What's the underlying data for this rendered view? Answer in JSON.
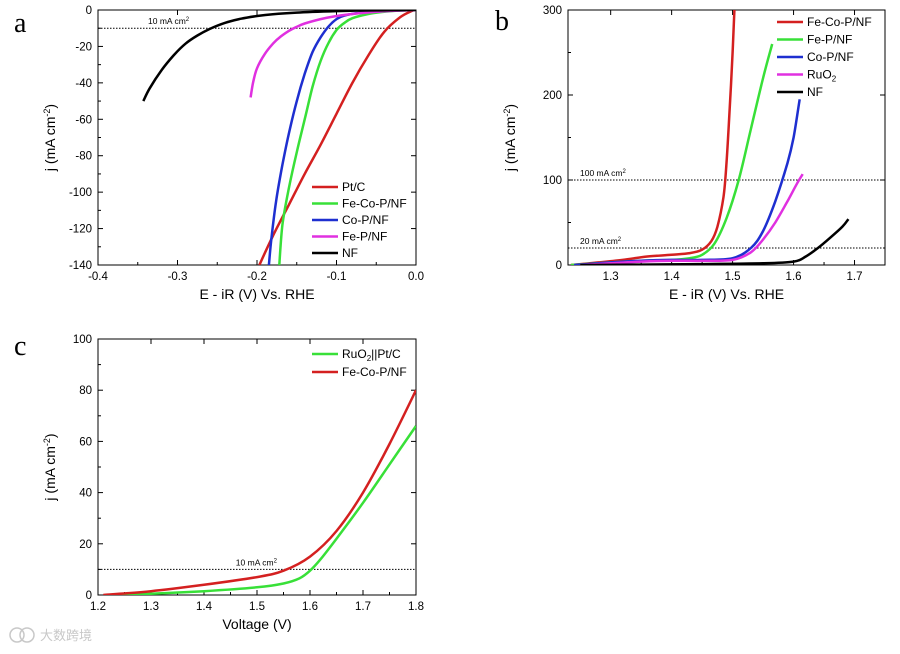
{
  "chart_data": [
    {
      "panel": "a",
      "type": "line",
      "xlabel": "E - iR (V) Vs. RHE",
      "ylabel": "j (mA cm",
      "ylabel_sup": "-2",
      "ylabel_close": ")",
      "xlim": [
        -0.4,
        0.0
      ],
      "ylim": [
        -140,
        0
      ],
      "xticks": [
        -0.4,
        -0.3,
        -0.2,
        -0.1,
        0.0
      ],
      "xtick_labels": [
        "-0.4",
        "-0.3",
        "-0.2",
        "-0.1",
        "0.0"
      ],
      "yticks": [
        0,
        -20,
        -40,
        -60,
        -80,
        -100,
        -120,
        -140
      ],
      "ytick_labels": [
        "0",
        "-20",
        "-40",
        "-60",
        "-80",
        "-100",
        "-120",
        "-140"
      ],
      "reference_lines": [
        {
          "y": -10,
          "label": "10 mA cm",
          "label_sup": "2"
        }
      ],
      "legend_position": "bottom-right",
      "series": [
        {
          "name": "Pt/C",
          "color": "#d42020",
          "x": [
            -0.197,
            -0.18,
            -0.16,
            -0.14,
            -0.12,
            -0.1,
            -0.08,
            -0.06,
            -0.04,
            -0.02,
            -0.005,
            0.0
          ],
          "y": [
            -140,
            -124,
            -107,
            -90,
            -74,
            -57,
            -40,
            -25,
            -12,
            -4,
            -0.5,
            0
          ]
        },
        {
          "name": "Fe-Co-P/NF",
          "color": "#38e038",
          "x": [
            -0.172,
            -0.168,
            -0.16,
            -0.15,
            -0.14,
            -0.13,
            -0.12,
            -0.11,
            -0.1,
            -0.09,
            -0.08,
            -0.06,
            -0.04,
            -0.02,
            0.0
          ],
          "y": [
            -140,
            -118,
            -98,
            -78,
            -60,
            -42,
            -28,
            -18,
            -11,
            -7,
            -4.5,
            -2.2,
            -1,
            -0.3,
            0
          ]
        },
        {
          "name": "Co-P/NF",
          "color": "#1e2fd0",
          "x": [
            -0.185,
            -0.182,
            -0.176,
            -0.168,
            -0.16,
            -0.15,
            -0.14,
            -0.13,
            -0.12,
            -0.11,
            -0.1,
            -0.09,
            -0.07,
            -0.04,
            -0.02,
            0.0
          ],
          "y": [
            -140,
            -126,
            -105,
            -85,
            -68,
            -50,
            -35,
            -23,
            -15,
            -9,
            -5,
            -3,
            -1.5,
            -0.6,
            -0.2,
            0
          ]
        },
        {
          "name": "Fe-P/NF",
          "color": "#e030e0",
          "x": [
            -0.208,
            -0.205,
            -0.2,
            -0.19,
            -0.18,
            -0.17,
            -0.16,
            -0.15,
            -0.14,
            -0.12,
            -0.1,
            -0.08,
            -0.05,
            -0.02,
            0.0
          ],
          "y": [
            -48,
            -40,
            -32,
            -24,
            -18.5,
            -14.5,
            -11.5,
            -9.2,
            -7.4,
            -5,
            -3.3,
            -2.2,
            -1,
            -0.3,
            0
          ]
        },
        {
          "name": "NF",
          "color": "#000000",
          "x": [
            -0.343,
            -0.335,
            -0.32,
            -0.305,
            -0.29,
            -0.275,
            -0.26,
            -0.24,
            -0.22,
            -0.2,
            -0.18,
            -0.15,
            -0.1,
            -0.05,
            0.0
          ],
          "y": [
            -50,
            -43,
            -33,
            -25,
            -18.5,
            -14,
            -10.5,
            -7,
            -4.8,
            -3.3,
            -2.3,
            -1.4,
            -0.6,
            -0.2,
            0
          ]
        }
      ]
    },
    {
      "panel": "b",
      "type": "line",
      "xlabel": "E - iR (V) Vs. RHE",
      "ylabel": "j (mA cm",
      "ylabel_sup": "-2",
      "ylabel_close": ")",
      "xlim": [
        1.23,
        1.75
      ],
      "ylim": [
        0,
        300
      ],
      "xticks": [
        1.3,
        1.4,
        1.5,
        1.6,
        1.7
      ],
      "xtick_labels": [
        "1.3",
        "1.4",
        "1.5",
        "1.6",
        "1.7"
      ],
      "yticks": [
        0,
        100,
        200,
        300
      ],
      "ytick_labels": [
        "0",
        "100",
        "200",
        "300"
      ],
      "reference_lines": [
        {
          "y": 100,
          "label": "100 mA cm",
          "label_sup": "2"
        },
        {
          "y": 20,
          "label": "20 mA cm",
          "label_sup": "2"
        }
      ],
      "legend_position": "top-right",
      "series": [
        {
          "name": "Fe-Co-P/NF",
          "color": "#d42020",
          "x": [
            1.235,
            1.28,
            1.32,
            1.36,
            1.4,
            1.43,
            1.45,
            1.465,
            1.475,
            1.485,
            1.49,
            1.495,
            1.5,
            1.503
          ],
          "y": [
            0,
            3,
            6,
            10,
            12,
            14,
            18,
            28,
            45,
            80,
            120,
            180,
            250,
            300
          ]
        },
        {
          "name": "Fe-P/NF",
          "color": "#38e038",
          "x": [
            1.235,
            1.3,
            1.35,
            1.4,
            1.43,
            1.45,
            1.47,
            1.49,
            1.51,
            1.53,
            1.55,
            1.565
          ],
          "y": [
            0,
            3,
            5,
            6,
            8,
            12,
            25,
            55,
            100,
            160,
            220,
            260
          ]
        },
        {
          "name": "Co-P/NF",
          "color": "#1e2fd0",
          "x": [
            1.24,
            1.3,
            1.35,
            1.4,
            1.45,
            1.5,
            1.53,
            1.55,
            1.57,
            1.59,
            1.6,
            1.61
          ],
          "y": [
            0,
            3,
            5,
            6,
            6,
            8,
            20,
            40,
            75,
            120,
            150,
            195
          ]
        },
        {
          "name": "RuO",
          "name_sub": "2",
          "color": "#e030e0",
          "x": [
            1.25,
            1.3,
            1.35,
            1.4,
            1.45,
            1.5,
            1.53,
            1.55,
            1.57,
            1.59,
            1.605,
            1.615
          ],
          "y": [
            0,
            2,
            4,
            5,
            5,
            6,
            15,
            30,
            50,
            75,
            95,
            107
          ]
        },
        {
          "name": "NF",
          "color": "#000000",
          "x": [
            1.25,
            1.35,
            1.45,
            1.55,
            1.6,
            1.62,
            1.64,
            1.66,
            1.68,
            1.69
          ],
          "y": [
            0,
            0.5,
            1,
            2,
            4,
            10,
            20,
            32,
            45,
            54
          ]
        }
      ]
    },
    {
      "panel": "c",
      "type": "line",
      "xlabel": "Voltage (V)",
      "ylabel": "j (mA cm",
      "ylabel_sup": "-2",
      "ylabel_close": ")",
      "xlim": [
        1.2,
        1.8
      ],
      "ylim": [
        0,
        100
      ],
      "xticks": [
        1.2,
        1.3,
        1.4,
        1.5,
        1.6,
        1.7,
        1.8
      ],
      "xtick_labels": [
        "1.2",
        "1.3",
        "1.4",
        "1.5",
        "1.6",
        "1.7",
        "1.8"
      ],
      "yticks": [
        0,
        20,
        40,
        60,
        80,
        100
      ],
      "ytick_labels": [
        "0",
        "20",
        "40",
        "60",
        "80",
        "100"
      ],
      "reference_lines": [
        {
          "y": 10,
          "label": "10 mA cm",
          "label_sup": "2"
        }
      ],
      "legend_position": "top-right",
      "series": [
        {
          "name": "RuO",
          "name_sub": "2",
          "name_rest": "||Pt/C",
          "color": "#38e038",
          "x": [
            1.22,
            1.3,
            1.4,
            1.5,
            1.55,
            1.58,
            1.6,
            1.62,
            1.65,
            1.7,
            1.75,
            1.8
          ],
          "y": [
            0,
            0.5,
            1.5,
            3,
            4.5,
            6.5,
            9.5,
            14,
            22,
            36,
            51,
            66
          ]
        },
        {
          "name": "Fe-Co-P/NF",
          "color": "#d42020",
          "x": [
            1.21,
            1.3,
            1.4,
            1.5,
            1.55,
            1.6,
            1.65,
            1.7,
            1.75,
            1.8
          ],
          "y": [
            0,
            1.5,
            4,
            7,
            9.5,
            15,
            25,
            40,
            59,
            80
          ]
        }
      ]
    }
  ],
  "watermark": "大数跨境"
}
